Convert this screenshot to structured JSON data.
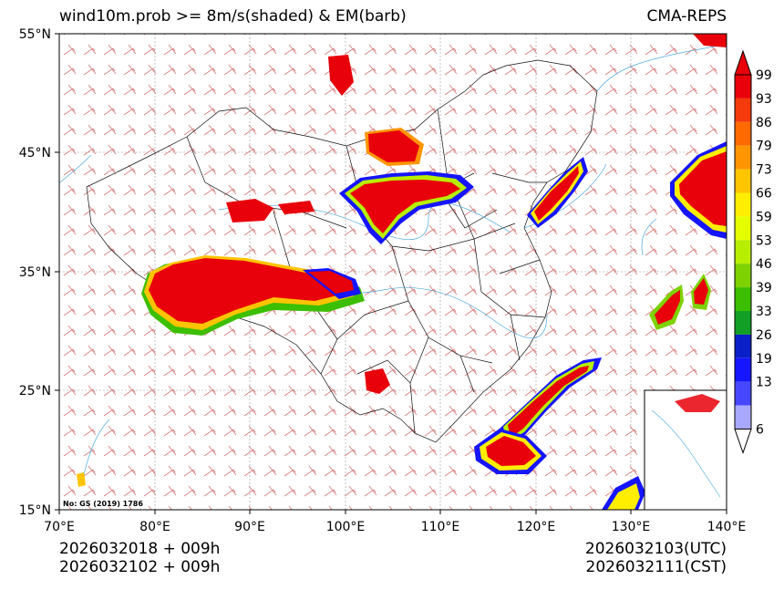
{
  "title": "wind10m.prob >= 8m/s(shaded) & EM(barb)",
  "source": "CMA-REPS",
  "lat_labels": [
    "55°N",
    "45°N",
    "35°N",
    "25°N",
    "15°N"
  ],
  "lon_labels": [
    "70°E",
    "80°E",
    "90°E",
    "100°E",
    "110°E",
    "120°E",
    "130°E",
    "140°E"
  ],
  "colorbar": {
    "levels": [
      "99",
      "93",
      "86",
      "79",
      "73",
      "66",
      "59",
      "53",
      "46",
      "39",
      "33",
      "26",
      "19",
      "13",
      "6"
    ],
    "colors": [
      "#e8000a",
      "#f53a0c",
      "#ff6a00",
      "#ff9500",
      "#ffc400",
      "#ffee00",
      "#e6ff00",
      "#b8ee00",
      "#7ed200",
      "#3cbf00",
      "#119f26",
      "#0b1fc8",
      "#1515ff",
      "#4747ff",
      "#a8a8ff"
    ]
  },
  "map_note": "No: GS (2019) 1786",
  "footer": {
    "init_line1": "2026032018  +  009h",
    "init_line2": "2026032102  +  009h",
    "valid_utc": "2026032103(UTC)",
    "valid_cst": "2026032111(CST)"
  }
}
